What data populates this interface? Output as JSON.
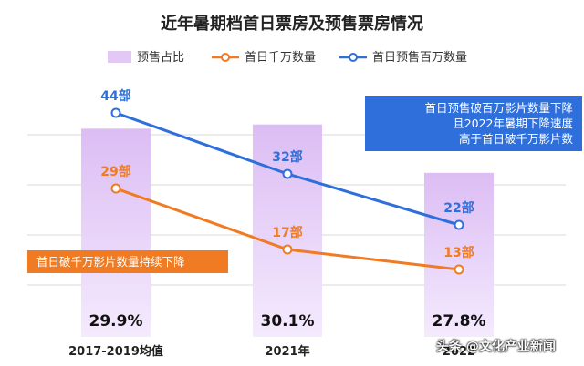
{
  "chart_data": {
    "type": "bar+line",
    "title": "近年暑期档首日票房及预售票房情况",
    "categories": [
      "2017-2019均值",
      "2021年",
      "2022年"
    ],
    "category_labels_visible": [
      "2017-2019均值",
      "2021年",
      "2022"
    ],
    "series": [
      {
        "name": "预售占比",
        "kind": "bar",
        "color": "#e1c8f5",
        "values": [
          29.9,
          30.1,
          27.8
        ],
        "labels": [
          "29.9%",
          "30.1%",
          "27.8%"
        ]
      },
      {
        "name": "首日千万数量",
        "kind": "line",
        "color": "#f07b22",
        "values": [
          29,
          17,
          13
        ],
        "labels": [
          "29部",
          "17部",
          "13部"
        ]
      },
      {
        "name": "首日预售百万数量",
        "kind": "line",
        "color": "#2e6fdc",
        "values": [
          44,
          32,
          22
        ],
        "labels": [
          "44部",
          "32部",
          "22部"
        ]
      }
    ],
    "annotations": {
      "blue_callout": [
        "首日预售破百万影片数量下降",
        "且2022年暑期下降速度",
        "高于首日破千万影片数"
      ],
      "orange_callout": "首日破千万影片数量持续下降"
    },
    "watermark": "头条 @文化产业新闻",
    "grid": true,
    "legend_position": "top"
  }
}
